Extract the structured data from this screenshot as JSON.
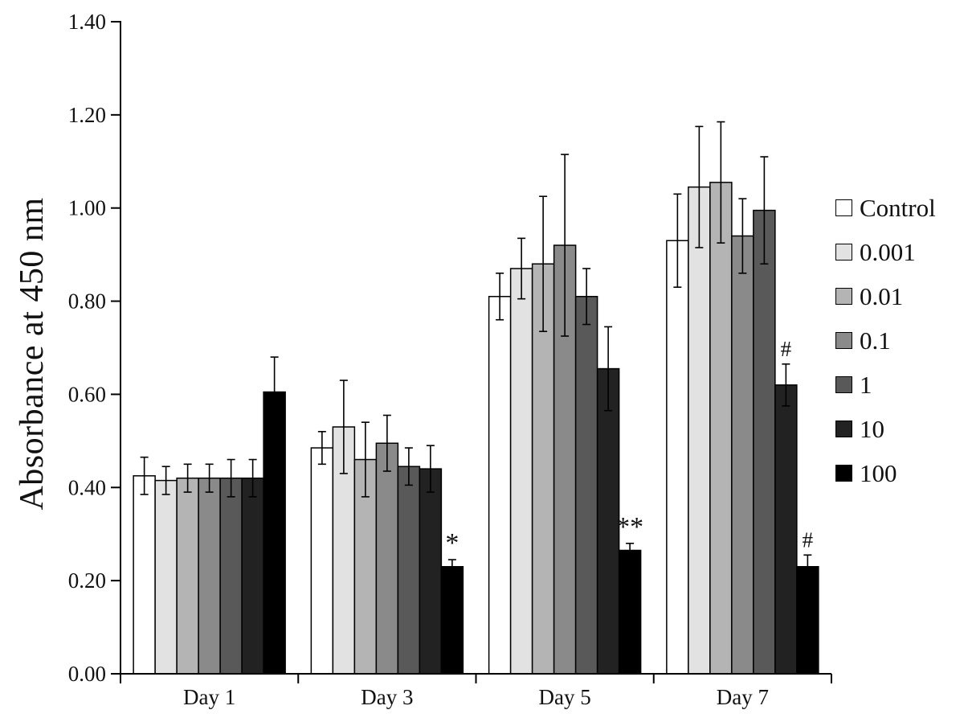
{
  "chart_data": {
    "type": "bar",
    "title": "",
    "xlabel": "",
    "ylabel": "Absorbance at 450 nm",
    "ylim": [
      0.0,
      1.4
    ],
    "ytick_step": 0.2,
    "ytick_labels": [
      "0.00",
      "0.20",
      "0.40",
      "0.60",
      "0.80",
      "1.00",
      "1.20",
      "1.40"
    ],
    "categories": [
      "Day 1",
      "Day 3",
      "Day 5",
      "Day 7"
    ],
    "legend_position": "right",
    "grid": false,
    "series": [
      {
        "name": "Control",
        "color": "#ffffff",
        "values": [
          0.425,
          0.485,
          0.81,
          0.93
        ],
        "errors": [
          0.04,
          0.035,
          0.05,
          0.1
        ]
      },
      {
        "name": "0.001",
        "color": "#e2e2e2",
        "values": [
          0.415,
          0.53,
          0.87,
          1.045
        ],
        "errors": [
          0.03,
          0.1,
          0.065,
          0.13
        ]
      },
      {
        "name": "0.01",
        "color": "#b4b4b4",
        "values": [
          0.42,
          0.46,
          0.88,
          1.055
        ],
        "errors": [
          0.03,
          0.08,
          0.145,
          0.13
        ]
      },
      {
        "name": "0.1",
        "color": "#8a8a8a",
        "values": [
          0.42,
          0.495,
          0.92,
          0.94
        ],
        "errors": [
          0.03,
          0.06,
          0.195,
          0.08
        ]
      },
      {
        "name": "1",
        "color": "#595959",
        "values": [
          0.42,
          0.445,
          0.81,
          0.995
        ],
        "errors": [
          0.04,
          0.04,
          0.06,
          0.115
        ]
      },
      {
        "name": "10",
        "color": "#222222",
        "values": [
          0.42,
          0.44,
          0.655,
          0.62
        ],
        "errors": [
          0.04,
          0.05,
          0.09,
          0.045
        ]
      },
      {
        "name": "100",
        "color": "#000000",
        "values": [
          0.605,
          0.23,
          0.265,
          0.23
        ],
        "errors": [
          0.075,
          0.015,
          0.015,
          0.025
        ]
      }
    ],
    "annotations": [
      {
        "series": "100",
        "category": "Day 3",
        "text": "*"
      },
      {
        "series": "100",
        "category": "Day 5",
        "text": "**"
      },
      {
        "series": "10",
        "category": "Day 7",
        "text": "#"
      },
      {
        "series": "100",
        "category": "Day 7",
        "text": "#"
      }
    ]
  }
}
